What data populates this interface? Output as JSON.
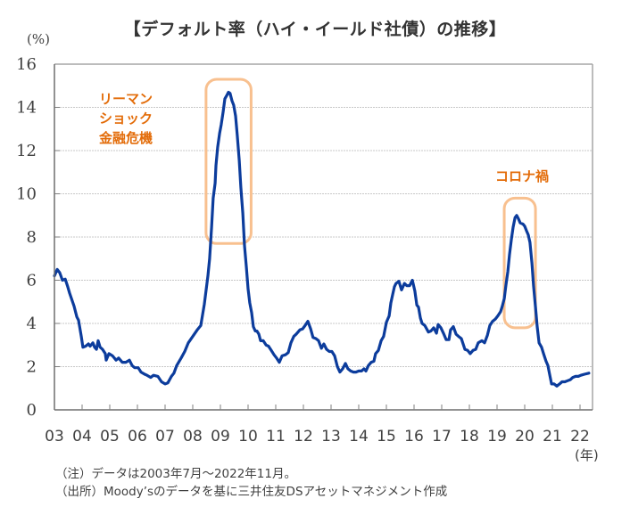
{
  "chart_data": {
    "type": "line",
    "title": "【デフォルト率（ハイ・イールド社債）の推移】",
    "ylabel": "(%)",
    "xlabel": "(年)",
    "ylim": [
      0,
      16
    ],
    "xlim": [
      2003.5,
      2022.9
    ],
    "grid": "horizontal-dotted",
    "yticks": [
      0,
      2,
      4,
      6,
      8,
      10,
      12,
      14,
      16
    ],
    "xtick_labels": [
      "03",
      "04",
      "05",
      "06",
      "07",
      "08",
      "09",
      "10",
      "11",
      "12",
      "13",
      "14",
      "15",
      "16",
      "17",
      "18",
      "19",
      "20",
      "21",
      "22"
    ],
    "series": [
      {
        "name": "デフォルト率（ハイ・イールド社債）",
        "color": "#0c3c9c",
        "points": [
          [
            2003.5,
            6.2
          ],
          [
            2003.6,
            6.5
          ],
          [
            2003.69,
            6.35
          ],
          [
            2003.79,
            6.0
          ],
          [
            2003.89,
            6.05
          ],
          [
            2003.98,
            5.7
          ],
          [
            2004.05,
            5.4
          ],
          [
            2004.21,
            4.8
          ],
          [
            2004.31,
            4.3
          ],
          [
            2004.37,
            4.15
          ],
          [
            2004.47,
            3.4
          ],
          [
            2004.53,
            2.9
          ],
          [
            2004.63,
            2.95
          ],
          [
            2004.73,
            3.05
          ],
          [
            2004.79,
            2.95
          ],
          [
            2004.89,
            3.1
          ],
          [
            2004.95,
            2.9
          ],
          [
            2005.02,
            2.8
          ],
          [
            2005.08,
            3.2
          ],
          [
            2005.15,
            2.9
          ],
          [
            2005.24,
            2.8
          ],
          [
            2005.34,
            2.6
          ],
          [
            2005.37,
            2.3
          ],
          [
            2005.47,
            2.6
          ],
          [
            2005.6,
            2.5
          ],
          [
            2005.73,
            2.3
          ],
          [
            2005.82,
            2.4
          ],
          [
            2005.95,
            2.2
          ],
          [
            2006.08,
            2.2
          ],
          [
            2006.21,
            2.3
          ],
          [
            2006.31,
            2.05
          ],
          [
            2006.4,
            1.95
          ],
          [
            2006.53,
            1.95
          ],
          [
            2006.63,
            1.75
          ],
          [
            2006.76,
            1.65
          ],
          [
            2006.85,
            1.6
          ],
          [
            2006.98,
            1.5
          ],
          [
            2007.08,
            1.6
          ],
          [
            2007.24,
            1.55
          ],
          [
            2007.37,
            1.3
          ],
          [
            2007.5,
            1.2
          ],
          [
            2007.6,
            1.25
          ],
          [
            2007.73,
            1.55
          ],
          [
            2007.82,
            1.7
          ],
          [
            2007.92,
            2.05
          ],
          [
            2008.08,
            2.4
          ],
          [
            2008.21,
            2.7
          ],
          [
            2008.34,
            3.1
          ],
          [
            2008.5,
            3.4
          ],
          [
            2008.66,
            3.7
          ],
          [
            2008.79,
            3.9
          ],
          [
            2008.92,
            4.9
          ],
          [
            2009.05,
            6.2
          ],
          [
            2009.11,
            7.0
          ],
          [
            2009.18,
            8.45
          ],
          [
            2009.24,
            9.8
          ],
          [
            2009.31,
            10.5
          ],
          [
            2009.34,
            11.3
          ],
          [
            2009.4,
            12.15
          ],
          [
            2009.47,
            12.8
          ],
          [
            2009.53,
            13.2
          ],
          [
            2009.6,
            13.8
          ],
          [
            2009.66,
            14.4
          ],
          [
            2009.73,
            14.55
          ],
          [
            2009.79,
            14.7
          ],
          [
            2009.85,
            14.65
          ],
          [
            2009.92,
            14.3
          ],
          [
            2009.98,
            14.1
          ],
          [
            2010.05,
            13.6
          ],
          [
            2010.11,
            12.7
          ],
          [
            2010.18,
            11.55
          ],
          [
            2010.24,
            10.3
          ],
          [
            2010.31,
            9.1
          ],
          [
            2010.37,
            7.6
          ],
          [
            2010.44,
            6.6
          ],
          [
            2010.5,
            5.6
          ],
          [
            2010.56,
            4.95
          ],
          [
            2010.63,
            4.5
          ],
          [
            2010.69,
            3.85
          ],
          [
            2010.76,
            3.65
          ],
          [
            2010.82,
            3.65
          ],
          [
            2010.89,
            3.5
          ],
          [
            2010.95,
            3.2
          ],
          [
            2011.05,
            3.2
          ],
          [
            2011.15,
            3.0
          ],
          [
            2011.24,
            2.95
          ],
          [
            2011.34,
            2.75
          ],
          [
            2011.44,
            2.55
          ],
          [
            2011.53,
            2.4
          ],
          [
            2011.63,
            2.2
          ],
          [
            2011.73,
            2.5
          ],
          [
            2011.85,
            2.55
          ],
          [
            2011.95,
            2.65
          ],
          [
            2012.05,
            3.1
          ],
          [
            2012.15,
            3.4
          ],
          [
            2012.24,
            3.5
          ],
          [
            2012.37,
            3.7
          ],
          [
            2012.47,
            3.75
          ],
          [
            2012.56,
            3.9
          ],
          [
            2012.66,
            4.1
          ],
          [
            2012.76,
            3.75
          ],
          [
            2012.85,
            3.35
          ],
          [
            2012.95,
            3.3
          ],
          [
            2013.05,
            3.2
          ],
          [
            2013.15,
            2.85
          ],
          [
            2013.24,
            3.05
          ],
          [
            2013.34,
            2.8
          ],
          [
            2013.44,
            2.7
          ],
          [
            2013.53,
            2.7
          ],
          [
            2013.63,
            2.5
          ],
          [
            2013.73,
            2.0
          ],
          [
            2013.82,
            1.75
          ],
          [
            2013.92,
            1.9
          ],
          [
            2014.02,
            2.15
          ],
          [
            2014.11,
            1.9
          ],
          [
            2014.21,
            1.8
          ],
          [
            2014.31,
            1.75
          ],
          [
            2014.4,
            1.75
          ],
          [
            2014.5,
            1.8
          ],
          [
            2014.6,
            1.8
          ],
          [
            2014.69,
            1.9
          ],
          [
            2014.76,
            1.8
          ],
          [
            2014.85,
            2.05
          ],
          [
            2014.95,
            2.2
          ],
          [
            2015.05,
            2.25
          ],
          [
            2015.11,
            2.6
          ],
          [
            2015.21,
            2.75
          ],
          [
            2015.31,
            3.2
          ],
          [
            2015.4,
            3.4
          ],
          [
            2015.5,
            4.05
          ],
          [
            2015.6,
            4.35
          ],
          [
            2015.66,
            4.95
          ],
          [
            2015.73,
            5.35
          ],
          [
            2015.79,
            5.7
          ],
          [
            2015.85,
            5.85
          ],
          [
            2015.95,
            5.95
          ],
          [
            2016.05,
            5.55
          ],
          [
            2016.15,
            5.85
          ],
          [
            2016.24,
            5.75
          ],
          [
            2016.34,
            5.75
          ],
          [
            2016.44,
            6.0
          ],
          [
            2016.53,
            5.5
          ],
          [
            2016.6,
            4.85
          ],
          [
            2016.66,
            4.75
          ],
          [
            2016.73,
            4.25
          ],
          [
            2016.79,
            4.0
          ],
          [
            2016.89,
            3.9
          ],
          [
            2017.02,
            3.6
          ],
          [
            2017.11,
            3.65
          ],
          [
            2017.21,
            3.8
          ],
          [
            2017.31,
            3.55
          ],
          [
            2017.37,
            3.95
          ],
          [
            2017.47,
            3.8
          ],
          [
            2017.56,
            3.55
          ],
          [
            2017.66,
            3.25
          ],
          [
            2017.76,
            3.25
          ],
          [
            2017.82,
            3.7
          ],
          [
            2017.92,
            3.85
          ],
          [
            2018.02,
            3.5
          ],
          [
            2018.11,
            3.4
          ],
          [
            2018.21,
            3.3
          ],
          [
            2018.34,
            2.8
          ],
          [
            2018.44,
            2.75
          ],
          [
            2018.53,
            2.6
          ],
          [
            2018.63,
            2.75
          ],
          [
            2018.73,
            2.8
          ],
          [
            2018.82,
            3.1
          ],
          [
            2018.95,
            3.2
          ],
          [
            2019.05,
            3.1
          ],
          [
            2019.15,
            3.45
          ],
          [
            2019.24,
            3.9
          ],
          [
            2019.34,
            4.1
          ],
          [
            2019.44,
            4.2
          ],
          [
            2019.53,
            4.35
          ],
          [
            2019.63,
            4.55
          ],
          [
            2019.69,
            4.8
          ],
          [
            2019.76,
            5.15
          ],
          [
            2019.82,
            5.75
          ],
          [
            2019.89,
            6.4
          ],
          [
            2019.95,
            7.2
          ],
          [
            2020.02,
            7.9
          ],
          [
            2020.08,
            8.45
          ],
          [
            2020.15,
            8.9
          ],
          [
            2020.21,
            9.0
          ],
          [
            2020.27,
            8.85
          ],
          [
            2020.34,
            8.65
          ],
          [
            2020.44,
            8.6
          ],
          [
            2020.5,
            8.5
          ],
          [
            2020.56,
            8.3
          ],
          [
            2020.63,
            8.1
          ],
          [
            2020.69,
            7.75
          ],
          [
            2020.76,
            6.8
          ],
          [
            2020.82,
            5.75
          ],
          [
            2020.89,
            4.75
          ],
          [
            2020.95,
            3.85
          ],
          [
            2021.02,
            3.1
          ],
          [
            2021.11,
            2.9
          ],
          [
            2021.18,
            2.6
          ],
          [
            2021.27,
            2.25
          ],
          [
            2021.34,
            2.05
          ],
          [
            2021.4,
            1.65
          ],
          [
            2021.47,
            1.2
          ],
          [
            2021.56,
            1.2
          ],
          [
            2021.66,
            1.1
          ],
          [
            2021.76,
            1.2
          ],
          [
            2021.85,
            1.3
          ],
          [
            2021.95,
            1.3
          ],
          [
            2022.05,
            1.35
          ],
          [
            2022.15,
            1.4
          ],
          [
            2022.24,
            1.5
          ],
          [
            2022.34,
            1.55
          ],
          [
            2022.44,
            1.55
          ],
          [
            2022.53,
            1.6
          ],
          [
            2022.66,
            1.65
          ],
          [
            2022.82,
            1.7
          ]
        ]
      }
    ],
    "annotations": [
      {
        "text_lines": [
          "リーマン",
          "ショック",
          "金融危機"
        ],
        "color": "#e36c09",
        "highlight_range": [
          2008.98,
          2010.61
        ],
        "highlight_value_range": [
          7.7,
          15.3
        ]
      },
      {
        "text_lines": [
          "コロナ禍"
        ],
        "color": "#e36c09",
        "highlight_range": [
          2019.76,
          2020.89
        ],
        "highlight_value_range": [
          3.8,
          9.8
        ]
      }
    ],
    "highlight_box_color": "#f8c08f"
  },
  "notes": [
    "（注）データは2003年7月～2022年11月。",
    "（出所）Moody’sのデータを基に三井住友DSアセットマネジメント作成"
  ]
}
